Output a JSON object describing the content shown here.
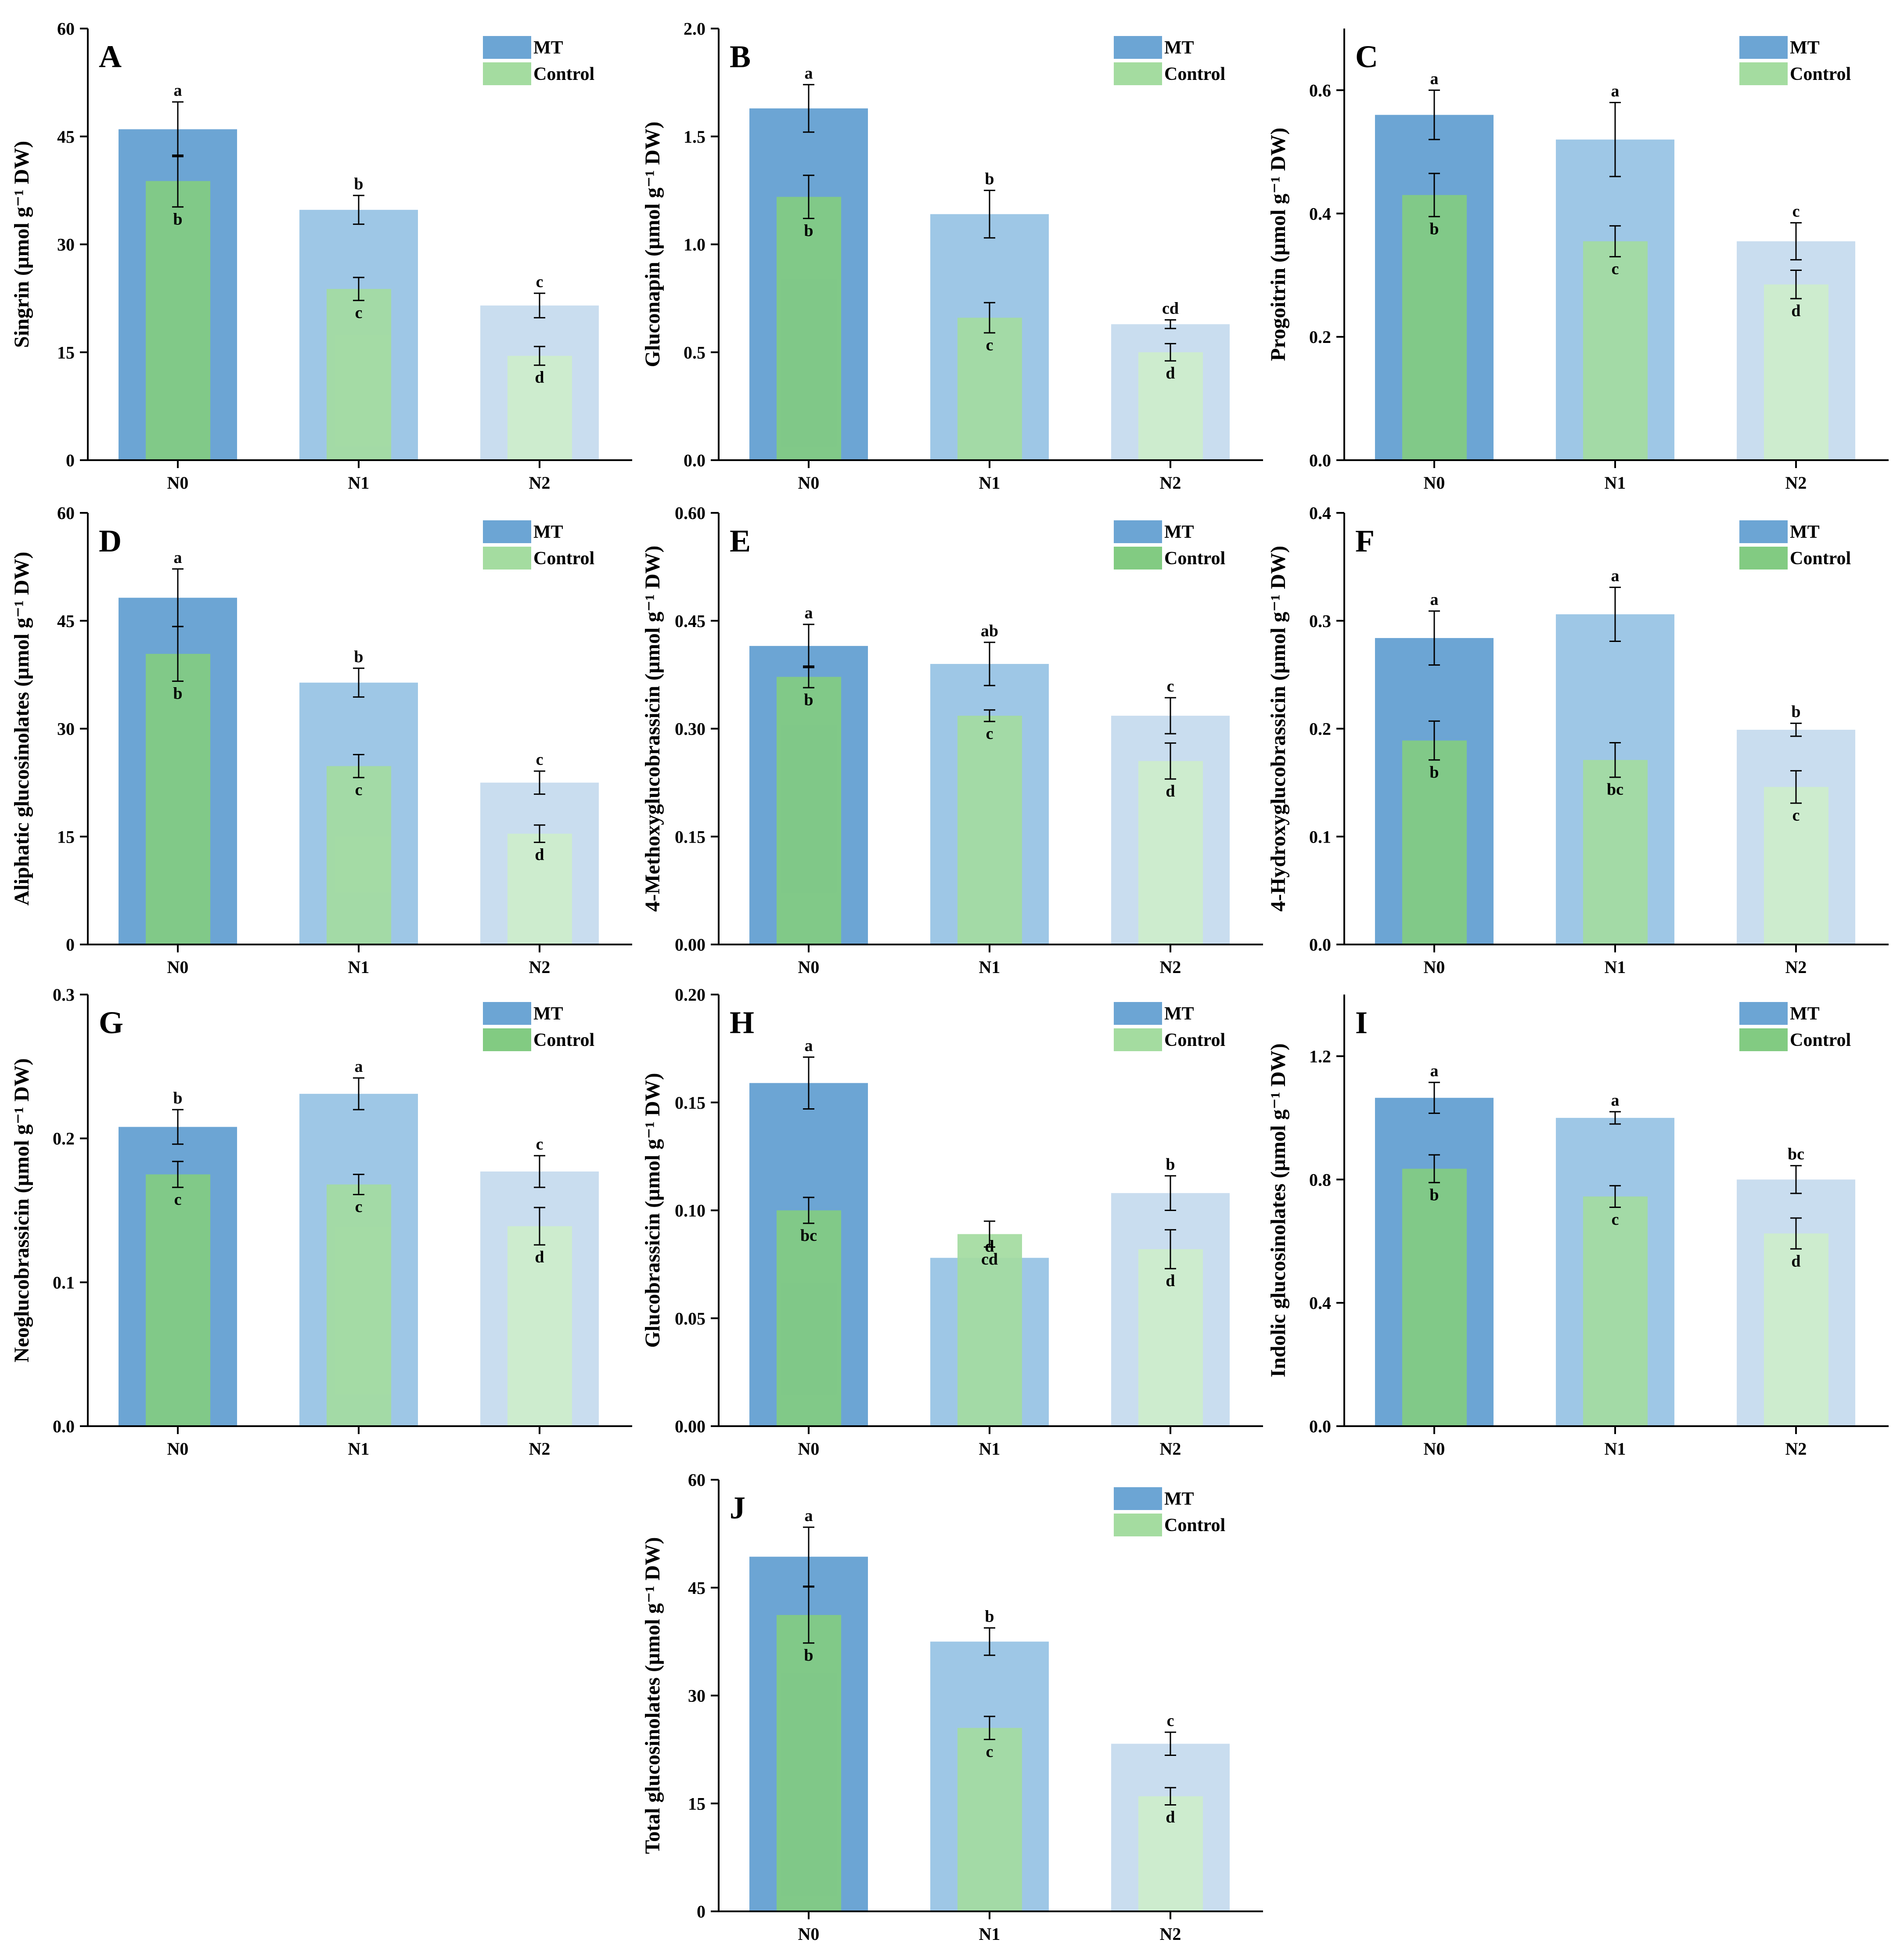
{
  "figure": {
    "panels_count": 10
  },
  "legend": {
    "series": [
      "MT",
      "Control"
    ],
    "colors": {
      "mt": [
        "#6ca5d4",
        "#9ec7e6",
        "#c9ddef"
      ],
      "control": [
        "#82cb82",
        "#a4dca0",
        "#cdedcb"
      ]
    }
  },
  "chart_data": [
    {
      "panel": "A",
      "type": "bar",
      "categories": [
        "N0",
        "N1",
        "N2"
      ],
      "ylabel": "Singrin (µmol g⁻¹ DW)",
      "ylim": [
        0,
        60
      ],
      "yticks": [
        0,
        15,
        30,
        45,
        60
      ],
      "ytick_labels": [
        "0",
        "15",
        "30",
        "45",
        "60"
      ],
      "series": [
        {
          "name": "MT",
          "values": [
            46.0,
            34.8,
            21.5
          ],
          "errors": [
            3.8,
            2.0,
            1.7
          ],
          "letters": [
            "a",
            "b",
            "c"
          ]
        },
        {
          "name": "Control",
          "values": [
            38.8,
            23.8,
            14.5
          ],
          "errors": [
            3.6,
            1.6,
            1.3
          ],
          "letters": [
            "b",
            "c",
            "d"
          ]
        }
      ]
    },
    {
      "panel": "B",
      "type": "bar",
      "categories": [
        "N0",
        "N1",
        "N2"
      ],
      "ylabel": "Gluconapin (µmol g⁻¹ DW)",
      "ylim": [
        0,
        2.0
      ],
      "yticks": [
        0,
        0.5,
        1.0,
        1.5,
        2.0
      ],
      "ytick_labels": [
        "0.0",
        "0.5",
        "1.0",
        "1.5",
        "2.0"
      ],
      "series": [
        {
          "name": "MT",
          "values": [
            1.63,
            1.14,
            0.63
          ],
          "errors": [
            0.11,
            0.11,
            0.02
          ],
          "letters": [
            "a",
            "b",
            "cd"
          ]
        },
        {
          "name": "Control",
          "values": [
            1.22,
            0.66,
            0.5
          ],
          "errors": [
            0.1,
            0.07,
            0.04
          ],
          "letters": [
            "b",
            "c",
            "d"
          ]
        }
      ]
    },
    {
      "panel": "C",
      "type": "bar",
      "categories": [
        "N0",
        "N1",
        "N2"
      ],
      "ylabel": "Progoitrin (µmol g⁻¹ DW)",
      "ylim": [
        0,
        0.7
      ],
      "yticks": [
        0,
        0.2,
        0.4,
        0.6
      ],
      "ytick_labels": [
        "0.0",
        "0.2",
        "0.4",
        "0.6"
      ],
      "series": [
        {
          "name": "MT",
          "values": [
            0.56,
            0.52,
            0.355
          ],
          "errors": [
            0.04,
            0.06,
            0.03
          ],
          "letters": [
            "a",
            "a",
            "c"
          ]
        },
        {
          "name": "Control",
          "values": [
            0.43,
            0.355,
            0.285
          ],
          "errors": [
            0.035,
            0.025,
            0.023
          ],
          "letters": [
            "b",
            "c",
            "d"
          ]
        }
      ]
    },
    {
      "panel": "D",
      "type": "bar",
      "categories": [
        "N0",
        "N1",
        "N2"
      ],
      "ylabel": "Aliphatic glucosinolates (µmol g⁻¹ DW)",
      "ylim": [
        0,
        60
      ],
      "yticks": [
        0,
        15,
        30,
        45,
        60
      ],
      "ytick_labels": [
        "0",
        "15",
        "30",
        "45",
        "60"
      ],
      "series": [
        {
          "name": "MT",
          "values": [
            48.2,
            36.4,
            22.5
          ],
          "errors": [
            4.0,
            2.0,
            1.6
          ],
          "letters": [
            "a",
            "b",
            "c"
          ]
        },
        {
          "name": "Control",
          "values": [
            40.4,
            24.8,
            15.4
          ],
          "errors": [
            3.8,
            1.6,
            1.2
          ],
          "letters": [
            "b",
            "c",
            "d"
          ]
        }
      ]
    },
    {
      "panel": "E",
      "type": "bar",
      "categories": [
        "N0",
        "N1",
        "N2"
      ],
      "ylabel": "4-Methoxyglucobrassicin (µmol g⁻¹ DW)",
      "ylim": [
        0,
        0.6
      ],
      "yticks": [
        0,
        0.15,
        0.3,
        0.45,
        0.6
      ],
      "ytick_labels": [
        "0.00",
        "0.15",
        "0.30",
        "0.45",
        "0.60"
      ],
      "series": [
        {
          "name": "MT",
          "values": [
            0.415,
            0.39,
            0.318
          ],
          "errors": [
            0.03,
            0.03,
            0.025
          ],
          "letters": [
            "a",
            "ab",
            "c"
          ]
        },
        {
          "name": "Control",
          "values": [
            0.372,
            0.318,
            0.255
          ],
          "errors": [
            0.015,
            0.008,
            0.025
          ],
          "letters": [
            "b",
            "c",
            "d"
          ]
        }
      ]
    },
    {
      "panel": "F",
      "type": "bar",
      "categories": [
        "N0",
        "N1",
        "N2"
      ],
      "ylabel": "4-Hydroxyglucobrassicin (µmol g⁻¹ DW)",
      "ylim": [
        0,
        0.4
      ],
      "yticks": [
        0,
        0.1,
        0.2,
        0.3,
        0.4
      ],
      "ytick_labels": [
        "0.0",
        "0.1",
        "0.2",
        "0.3",
        "0.4"
      ],
      "series": [
        {
          "name": "MT",
          "values": [
            0.284,
            0.306,
            0.199
          ],
          "errors": [
            0.025,
            0.025,
            0.006
          ],
          "letters": [
            "a",
            "a",
            "b"
          ]
        },
        {
          "name": "Control",
          "values": [
            0.189,
            0.171,
            0.146
          ],
          "errors": [
            0.018,
            0.016,
            0.015
          ],
          "letters": [
            "b",
            "bc",
            "c"
          ]
        }
      ]
    },
    {
      "panel": "G",
      "type": "bar",
      "categories": [
        "N0",
        "N1",
        "N2"
      ],
      "ylabel": "Neoglucobrassicin (µmol g⁻¹ DW)",
      "ylim": [
        0,
        0.3
      ],
      "yticks": [
        0,
        0.1,
        0.2,
        0.3
      ],
      "ytick_labels": [
        "0.0",
        "0.1",
        "0.2",
        "0.3"
      ],
      "series": [
        {
          "name": "MT",
          "values": [
            0.208,
            0.231,
            0.177
          ],
          "errors": [
            0.012,
            0.011,
            0.011
          ],
          "letters": [
            "b",
            "a",
            "c"
          ]
        },
        {
          "name": "Control",
          "values": [
            0.175,
            0.168,
            0.139
          ],
          "errors": [
            0.009,
            0.007,
            0.013
          ],
          "letters": [
            "c",
            "c",
            "d"
          ]
        }
      ]
    },
    {
      "panel": "H",
      "type": "bar",
      "categories": [
        "N0",
        "N1",
        "N2"
      ],
      "ylabel": "Glucobrassicin (µmol g⁻¹ DW)",
      "ylim": [
        0,
        0.2
      ],
      "yticks": [
        0,
        0.05,
        0.1,
        0.15,
        0.2
      ],
      "ytick_labels": [
        "0.00",
        "0.05",
        "0.10",
        "0.15",
        "0.20"
      ],
      "series": [
        {
          "name": "MT",
          "values": [
            0.159,
            0.078,
            0.108
          ],
          "errors": [
            0.012,
            0.0,
            0.008
          ],
          "letters": [
            "a",
            "d",
            "b"
          ]
        },
        {
          "name": "Control",
          "values": [
            0.1,
            0.089,
            0.082
          ],
          "errors": [
            0.006,
            0.006,
            0.009
          ],
          "letters": [
            "bc",
            "cd",
            "d"
          ]
        }
      ]
    },
    {
      "panel": "I",
      "type": "bar",
      "categories": [
        "N0",
        "N1",
        "N2"
      ],
      "ylabel": "Indolic glucosinolates (µmol g⁻¹ DW)",
      "ylim": [
        0,
        1.4
      ],
      "yticks": [
        0,
        0.4,
        0.8,
        1.2
      ],
      "ytick_labels": [
        "0.0",
        "0.4",
        "0.8",
        "1.2"
      ],
      "series": [
        {
          "name": "MT",
          "values": [
            1.065,
            1.0,
            0.8
          ],
          "errors": [
            0.05,
            0.02,
            0.045
          ],
          "letters": [
            "a",
            "a",
            "bc"
          ]
        },
        {
          "name": "Control",
          "values": [
            0.835,
            0.745,
            0.625
          ],
          "errors": [
            0.045,
            0.035,
            0.05
          ],
          "letters": [
            "b",
            "c",
            "d"
          ]
        }
      ]
    },
    {
      "panel": "J",
      "type": "bar",
      "categories": [
        "N0",
        "N1",
        "N2"
      ],
      "ylabel": "Total glucosinolates (µmol g⁻¹ DW)",
      "ylim": [
        0,
        60
      ],
      "yticks": [
        0,
        15,
        30,
        45,
        60
      ],
      "ytick_labels": [
        "0",
        "15",
        "30",
        "45",
        "60"
      ],
      "series": [
        {
          "name": "MT",
          "values": [
            49.3,
            37.5,
            23.3
          ],
          "errors": [
            4.1,
            1.9,
            1.6
          ],
          "letters": [
            "a",
            "b",
            "c"
          ]
        },
        {
          "name": "Control",
          "values": [
            41.2,
            25.5,
            16.0
          ],
          "errors": [
            3.9,
            1.6,
            1.2
          ],
          "letters": [
            "b",
            "c",
            "d"
          ]
        }
      ]
    }
  ]
}
